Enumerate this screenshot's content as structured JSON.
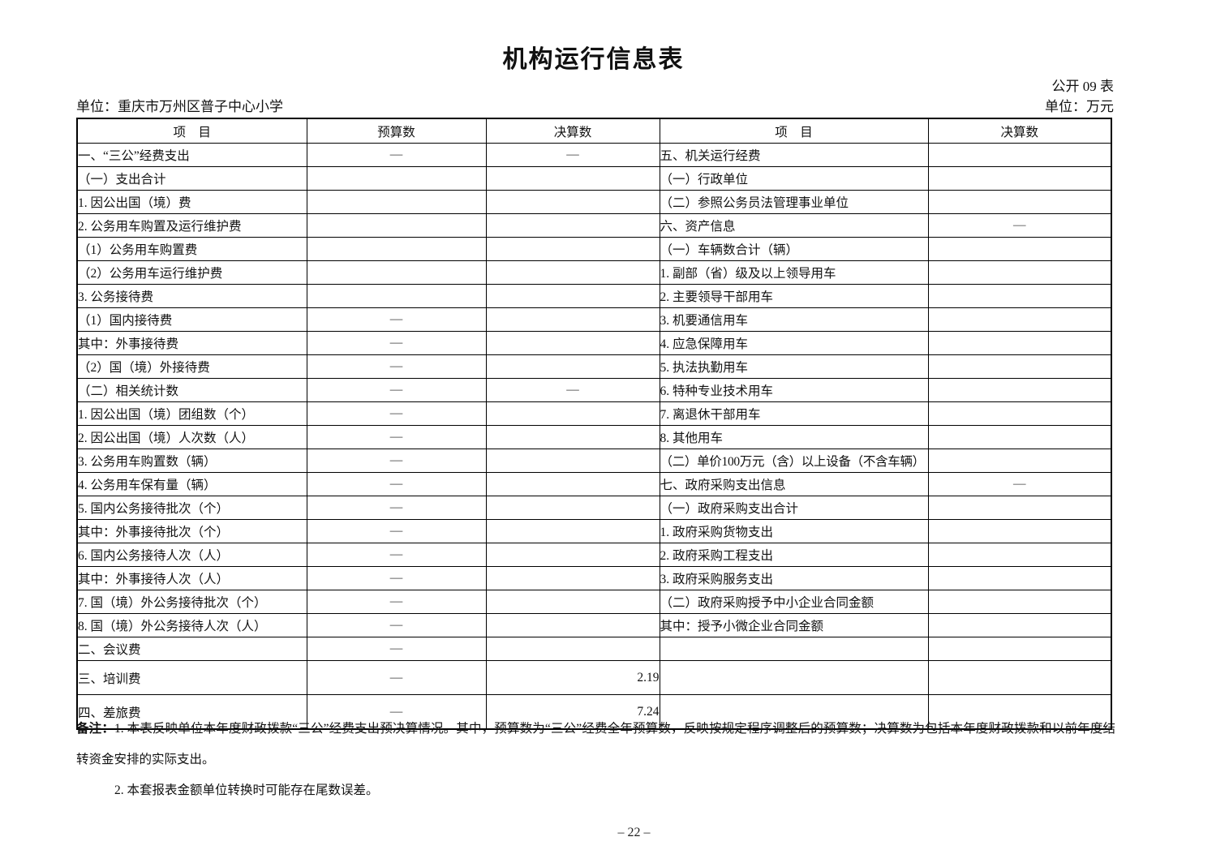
{
  "page": {
    "title": "机构运行信息表",
    "form_code": "公开 09 表",
    "unit_name": "单位：重庆市万州区普子中心小学",
    "unit_currency": "单位：万元",
    "page_number": "– 22 –"
  },
  "table": {
    "headers": [
      "项　目",
      "预算数",
      "决算数",
      "项　目",
      "决算数"
    ],
    "rows": [
      {
        "l": "一、“三公”经费支出",
        "li": 0,
        "b": "—",
        "f": "—",
        "r": "五、机关运行经费",
        "ri": 0,
        "rf": ""
      },
      {
        "l": "（一）支出合计",
        "li": 1,
        "b": "",
        "f": "",
        "r": "（一）行政单位",
        "ri": 1,
        "rf": ""
      },
      {
        "l": "1. 因公出国（境）费",
        "li": 2,
        "b": "",
        "f": "",
        "r": "（二）参照公务员法管理事业单位",
        "ri": 1,
        "rf": ""
      },
      {
        "l": "2. 公务用车购置及运行维护费",
        "li": 2,
        "b": "",
        "f": "",
        "r": "六、资产信息",
        "ri": 0,
        "rf": "—"
      },
      {
        "l": "（1）公务用车购置费",
        "li": 3,
        "b": "",
        "f": "",
        "r": "（一）车辆数合计（辆）",
        "ri": 1,
        "rf": ""
      },
      {
        "l": "（2）公务用车运行维护费",
        "li": 3,
        "b": "",
        "f": "",
        "r": "1. 副部（省）级及以上领导用车",
        "ri": 2,
        "rf": ""
      },
      {
        "l": "3. 公务接待费",
        "li": 2,
        "b": "",
        "f": "",
        "r": "2. 主要领导干部用车",
        "ri": 2,
        "rf": ""
      },
      {
        "l": "（1）国内接待费",
        "li": 3,
        "b": "—",
        "f": "",
        "r": "3. 机要通信用车",
        "ri": 2,
        "rf": ""
      },
      {
        "l": "其中：外事接待费",
        "li": 4,
        "b": "—",
        "f": "",
        "r": "4. 应急保障用车",
        "ri": 2,
        "rf": ""
      },
      {
        "l": "（2）国（境）外接待费",
        "li": 3,
        "b": "—",
        "f": "",
        "r": "5. 执法执勤用车",
        "ri": 2,
        "rf": ""
      },
      {
        "l": "（二）相关统计数",
        "li": 1,
        "b": "—",
        "f": "—",
        "r": "6. 特种专业技术用车",
        "ri": 2,
        "rf": ""
      },
      {
        "l": "1. 因公出国（境）团组数（个）",
        "li": 2,
        "b": "—",
        "f": "",
        "r": "7. 离退休干部用车",
        "ri": 2,
        "rf": ""
      },
      {
        "l": "2. 因公出国（境）人次数（人）",
        "li": 2,
        "b": "—",
        "f": "",
        "r": "8. 其他用车",
        "ri": 2,
        "rf": ""
      },
      {
        "l": "3. 公务用车购置数（辆）",
        "li": 2,
        "b": "—",
        "f": "",
        "r": "（二）单价100万元（含）以上设备（不含车辆）",
        "ri": 1,
        "rf": ""
      },
      {
        "l": "4. 公务用车保有量（辆）",
        "li": 2,
        "b": "—",
        "f": "",
        "r": "七、政府采购支出信息",
        "ri": 0,
        "rf": "—"
      },
      {
        "l": "5. 国内公务接待批次（个）",
        "li": 2,
        "b": "—",
        "f": "",
        "r": "（一）政府采购支出合计",
        "ri": 1,
        "rf": ""
      },
      {
        "l": "其中：外事接待批次（个）",
        "li": 4,
        "b": "—",
        "f": "",
        "r": "1. 政府采购货物支出",
        "ri": 2,
        "rf": ""
      },
      {
        "l": "6. 国内公务接待人次（人）",
        "li": 2,
        "b": "—",
        "f": "",
        "r": "2. 政府采购工程支出",
        "ri": 2,
        "rf": ""
      },
      {
        "l": "其中：外事接待人次（人）",
        "li": 4,
        "b": "—",
        "f": "",
        "r": "3. 政府采购服务支出",
        "ri": 2,
        "rf": ""
      },
      {
        "l": "7. 国（境）外公务接待批次（个）",
        "li": 2,
        "b": "—",
        "f": "",
        "r": "（二）政府采购授予中小企业合同金额",
        "ri": 1,
        "rf": ""
      },
      {
        "l": "8. 国（境）外公务接待人次（人）",
        "li": 2,
        "b": "—",
        "f": "",
        "r": "其中：授予小微企业合同金额",
        "ri": 4,
        "rf": ""
      },
      {
        "l": "二、会议费",
        "li": 0,
        "b": "—",
        "f": "",
        "r": "",
        "ri": 0,
        "rf": ""
      },
      {
        "l": "三、培训费",
        "li": 0,
        "b": "—",
        "f": "2.19",
        "r": "",
        "ri": 0,
        "rf": "",
        "tall": true
      },
      {
        "l": "四、差旅费",
        "li": 0,
        "b": "—",
        "f": "7.24",
        "r": "",
        "ri": 0,
        "rf": "",
        "tall": true
      }
    ]
  },
  "notes": {
    "label": "备注：",
    "note1": "1. 本表反映单位本年度财政拨款“三公”经费支出预决算情况。其中，预算数为“三公”经费全年预算数，反映按规定程序调整后的预算数；决算数为包括本年度财政拨款和以前年度结转资金安排的实际支出。",
    "note2": "2. 本套报表金额单位转换时可能存在尾数误差。"
  }
}
